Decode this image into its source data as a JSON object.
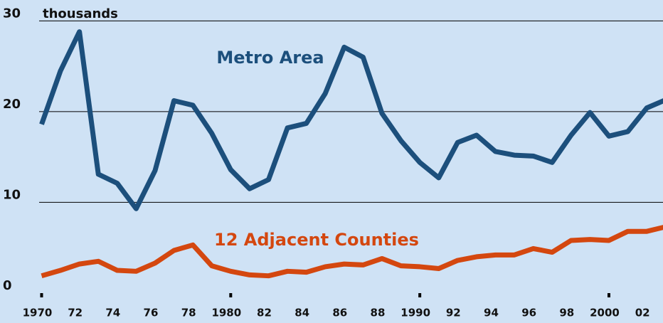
{
  "chart_data": {
    "type": "line",
    "y_axis_label": "thousands",
    "x": [
      1970,
      1971,
      1972,
      1973,
      1974,
      1975,
      1976,
      1977,
      1978,
      1979,
      1980,
      1981,
      1982,
      1983,
      1984,
      1985,
      1986,
      1987,
      1988,
      1989,
      1990,
      1991,
      1992,
      1993,
      1994,
      1995,
      1996,
      1997,
      1998,
      1999,
      2000,
      2001,
      2002,
      2003
    ],
    "series": [
      {
        "name": "Metro Area",
        "color": "#1c4f7c",
        "values": [
          18.6,
          24.5,
          28.8,
          13.1,
          12.1,
          9.3,
          13.5,
          21.2,
          20.7,
          17.6,
          13.6,
          11.5,
          12.5,
          18.2,
          18.7,
          22.0,
          27.1,
          26.0,
          19.8,
          16.8,
          14.4,
          12.7,
          16.6,
          17.4,
          15.6,
          15.2,
          15.1,
          14.4,
          17.4,
          19.9,
          17.3,
          17.8,
          20.4,
          21.3
        ]
      },
      {
        "name": "12 Adjacent Counties",
        "color": "#d4470f",
        "values": [
          1.9,
          2.5,
          3.2,
          3.5,
          2.5,
          2.4,
          3.3,
          4.7,
          5.3,
          3.0,
          2.4,
          2.0,
          1.9,
          2.4,
          2.3,
          2.9,
          3.2,
          3.1,
          3.8,
          3.0,
          2.9,
          2.7,
          3.6,
          4.0,
          4.2,
          4.2,
          4.9,
          4.5,
          5.8,
          5.9,
          5.8,
          6.8,
          6.8,
          7.3
        ]
      }
    ],
    "xlim": [
      1967.8,
      2002.86
    ],
    "ylim": [
      -3.3,
      32.3
    ],
    "yticks": [
      0,
      10,
      20,
      30
    ],
    "xticks": [
      {
        "value": 1970,
        "label": "1970"
      },
      {
        "value": 1972,
        "label": "72"
      },
      {
        "value": 1974,
        "label": "74"
      },
      {
        "value": 1976,
        "label": "76"
      },
      {
        "value": 1978,
        "label": "78"
      },
      {
        "value": 1980,
        "label": "1980"
      },
      {
        "value": 1982,
        "label": "82"
      },
      {
        "value": 1984,
        "label": "84"
      },
      {
        "value": 1986,
        "label": "86"
      },
      {
        "value": 1988,
        "label": "88"
      },
      {
        "value": 1990,
        "label": "1990"
      },
      {
        "value": 1992,
        "label": "92"
      },
      {
        "value": 1994,
        "label": "94"
      },
      {
        "value": 1996,
        "label": "96"
      },
      {
        "value": 1998,
        "label": "98"
      },
      {
        "value": 2000,
        "label": "2000"
      },
      {
        "value": 2002,
        "label": "02"
      }
    ],
    "grid": true
  }
}
